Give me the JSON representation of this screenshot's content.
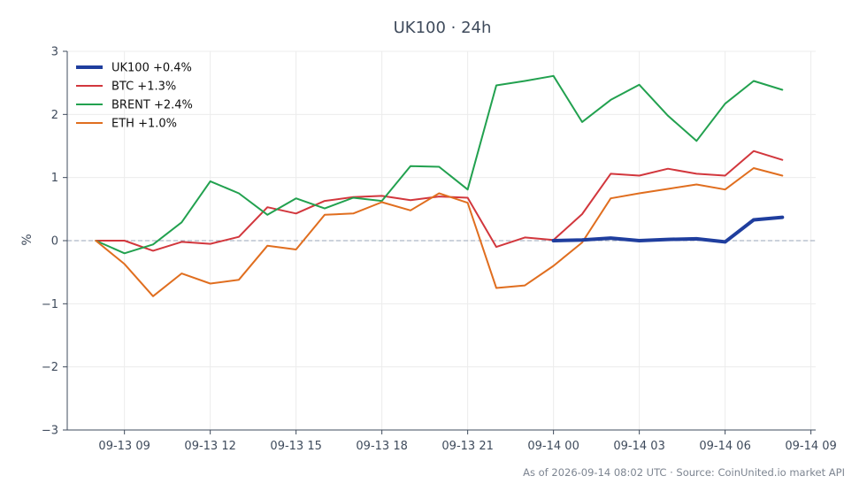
{
  "chart_data": {
    "type": "line",
    "title": "UK100 · 24h",
    "xlabel": "",
    "ylabel": "%",
    "ylim": [
      -3,
      3
    ],
    "xlim": [
      "2026-09-13 07:00",
      "2026-09-14 09:10"
    ],
    "x_ticks": [
      "09-13 09",
      "09-13 12",
      "09-13 15",
      "09-13 18",
      "09-13 21",
      "09-14 00",
      "09-14 03",
      "09-14 06",
      "09-14 09"
    ],
    "x_tick_times": [
      "2026-09-13 09:00",
      "2026-09-13 12:00",
      "2026-09-13 15:00",
      "2026-09-13 18:00",
      "2026-09-13 21:00",
      "2026-09-14 00:00",
      "2026-09-14 03:00",
      "2026-09-14 06:00",
      "2026-09-14 09:00"
    ],
    "y_ticks": [
      "3",
      "2",
      "1",
      "0",
      "−1",
      "−2",
      "−3"
    ],
    "y_tick_values": [
      3,
      2,
      1,
      0,
      -1,
      -2,
      -3
    ],
    "grid": true,
    "baseline": 0,
    "legend_position": "top-left",
    "series": [
      {
        "name": "UK100 +0.4%",
        "color": "#1f3e9e",
        "width": "thick",
        "x": [
          "2026-09-14 00:00",
          "2026-09-14 01:00",
          "2026-09-14 02:00",
          "2026-09-14 03:00",
          "2026-09-14 04:00",
          "2026-09-14 05:00",
          "2026-09-14 06:00",
          "2026-09-14 07:00",
          "2026-09-14 08:00"
        ],
        "values": [
          0.0,
          0.01,
          0.04,
          0.0,
          0.02,
          0.03,
          -0.02,
          0.33,
          0.37
        ]
      },
      {
        "name": "BTC +1.3%",
        "color": "#d2373d",
        "width": "normal",
        "x": [
          "2026-09-13 08:00",
          "2026-09-13 09:00",
          "2026-09-13 10:00",
          "2026-09-13 11:00",
          "2026-09-13 12:00",
          "2026-09-13 13:00",
          "2026-09-13 14:00",
          "2026-09-13 15:00",
          "2026-09-13 16:00",
          "2026-09-13 17:00",
          "2026-09-13 18:00",
          "2026-09-13 19:00",
          "2026-09-13 20:00",
          "2026-09-13 21:00",
          "2026-09-13 22:00",
          "2026-09-13 23:00",
          "2026-09-14 00:00",
          "2026-09-14 01:00",
          "2026-09-14 02:00",
          "2026-09-14 03:00",
          "2026-09-14 04:00",
          "2026-09-14 05:00",
          "2026-09-14 06:00",
          "2026-09-14 07:00",
          "2026-09-14 08:00"
        ],
        "values": [
          0.0,
          0.0,
          -0.16,
          -0.02,
          -0.05,
          0.06,
          0.53,
          0.43,
          0.63,
          0.69,
          0.71,
          0.64,
          0.7,
          0.68,
          -0.1,
          0.05,
          0.01,
          0.42,
          1.06,
          1.03,
          1.14,
          1.06,
          1.03,
          1.42,
          1.28
        ]
      },
      {
        "name": "BRENT +2.4%",
        "color": "#22a14f",
        "width": "normal",
        "x": [
          "2026-09-13 08:00",
          "2026-09-13 09:00",
          "2026-09-13 10:00",
          "2026-09-13 11:00",
          "2026-09-13 12:00",
          "2026-09-13 13:00",
          "2026-09-13 14:00",
          "2026-09-13 15:00",
          "2026-09-13 16:00",
          "2026-09-13 17:00",
          "2026-09-13 18:00",
          "2026-09-13 19:00",
          "2026-09-13 20:00",
          "2026-09-13 21:00",
          "2026-09-13 22:00",
          "2026-09-13 23:00",
          "2026-09-14 00:00",
          "2026-09-14 01:00",
          "2026-09-14 02:00",
          "2026-09-14 03:00",
          "2026-09-14 04:00",
          "2026-09-14 05:00",
          "2026-09-14 06:00",
          "2026-09-14 07:00",
          "2026-09-14 08:00"
        ],
        "values": [
          0.0,
          -0.2,
          -0.06,
          0.29,
          0.94,
          0.75,
          0.41,
          0.67,
          0.51,
          0.68,
          0.63,
          1.18,
          1.17,
          0.81,
          2.46,
          2.53,
          2.61,
          1.88,
          2.23,
          2.47,
          1.98,
          1.58,
          2.17,
          2.53,
          2.39
        ]
      },
      {
        "name": "ETH +1.0%",
        "color": "#e06e1f",
        "width": "normal",
        "x": [
          "2026-09-13 08:00",
          "2026-09-13 09:00",
          "2026-09-13 10:00",
          "2026-09-13 11:00",
          "2026-09-13 12:00",
          "2026-09-13 13:00",
          "2026-09-13 14:00",
          "2026-09-13 15:00",
          "2026-09-13 16:00",
          "2026-09-13 17:00",
          "2026-09-13 18:00",
          "2026-09-13 19:00",
          "2026-09-13 20:00",
          "2026-09-13 21:00",
          "2026-09-13 22:00",
          "2026-09-13 23:00",
          "2026-09-14 00:00",
          "2026-09-14 01:00",
          "2026-09-14 02:00",
          "2026-09-14 03:00",
          "2026-09-14 04:00",
          "2026-09-14 05:00",
          "2026-09-14 06:00",
          "2026-09-14 07:00",
          "2026-09-14 08:00"
        ],
        "values": [
          0.0,
          -0.37,
          -0.88,
          -0.52,
          -0.68,
          -0.62,
          -0.08,
          -0.14,
          0.41,
          0.43,
          0.61,
          0.48,
          0.75,
          0.6,
          -0.75,
          -0.71,
          -0.4,
          -0.03,
          0.67,
          0.75,
          0.82,
          0.89,
          0.81,
          1.15,
          1.03
        ]
      }
    ]
  },
  "footer": {
    "note": "As of 2026-09-14 08:02 UTC · Source: CoinUnited.io market API"
  }
}
